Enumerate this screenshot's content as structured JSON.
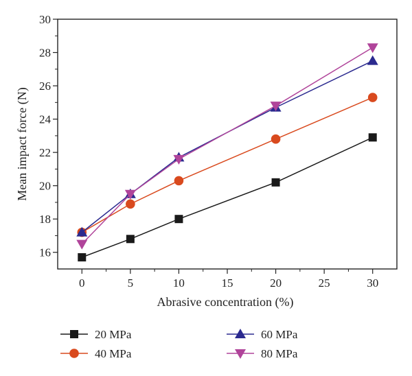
{
  "chart_data": {
    "type": "line",
    "title": "",
    "xlabel": "Abrasive concentration (%)",
    "ylabel": "Mean impact force (N)",
    "xlim": [
      -2.5,
      32.5
    ],
    "ylim": [
      15,
      30
    ],
    "xticks": [
      0,
      5,
      10,
      15,
      20,
      25,
      30
    ],
    "yticks": [
      16,
      18,
      20,
      22,
      24,
      26,
      28,
      30
    ],
    "grid": false,
    "legend_position": "bottom",
    "x": [
      0,
      5,
      10,
      20,
      30
    ],
    "series": [
      {
        "name": "20 MPa",
        "values": [
          15.7,
          16.8,
          18.0,
          20.2,
          22.9
        ],
        "color": "#1a1a1a",
        "marker": "square"
      },
      {
        "name": "40 MPa",
        "values": [
          17.2,
          18.9,
          20.3,
          22.8,
          25.3
        ],
        "color": "#d94a1e",
        "marker": "circle"
      },
      {
        "name": "60 MPa",
        "values": [
          17.2,
          19.5,
          21.7,
          24.7,
          27.5
        ],
        "color": "#2b2a8f",
        "marker": "triangle-up"
      },
      {
        "name": "80 MPa",
        "values": [
          16.5,
          19.5,
          21.6,
          24.8,
          28.3
        ],
        "color": "#b0449a",
        "marker": "triangle-down"
      }
    ]
  }
}
